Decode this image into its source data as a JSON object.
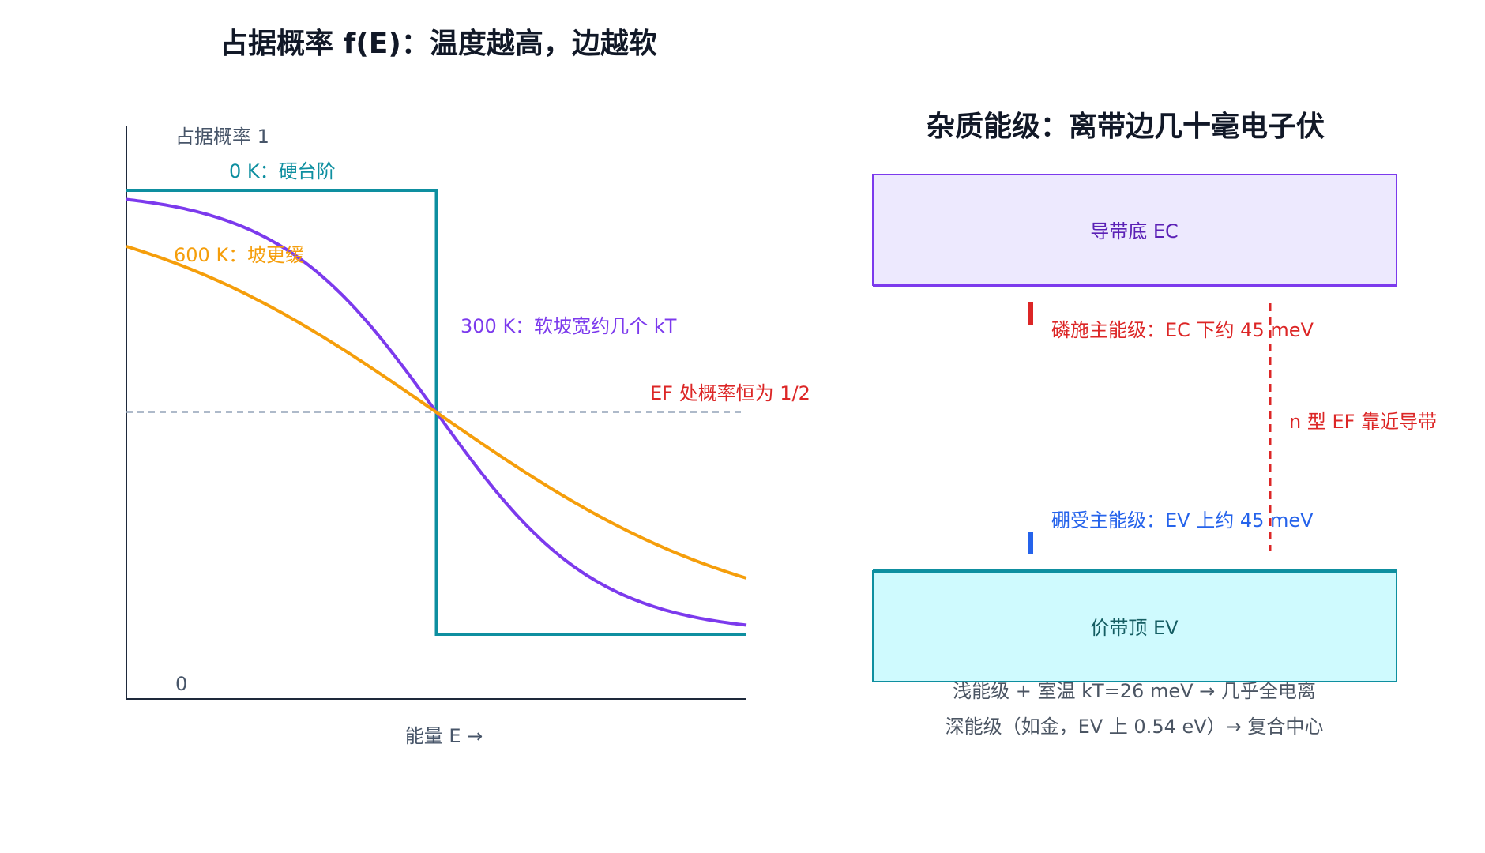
{
  "left_panel": {
    "title": "占据概率 f(E)：温度越高，边越软",
    "y_top_label": "占据概率 1",
    "y_bottom_label": "0",
    "x_label": "能量 E →",
    "fermi_label": "EF 处概率恒为 1/2",
    "colors": {
      "axis": "#1e293b",
      "fermi_line": "#94a3b8",
      "fermi_text": "#dc2626"
    }
  },
  "chart_data": {
    "type": "line",
    "x_range": [
      -0.5,
      0.5
    ],
    "ylim": [
      0,
      1
    ],
    "fermi_level": 0,
    "fermi_probability": 0.5,
    "series": [
      {
        "name": "0 K：硬台阶",
        "temperature_K": 0,
        "color": "#0e8fa0",
        "shape": "step",
        "step_at": 0
      },
      {
        "name": "300 K：软坡宽约几个 kT",
        "temperature_K": 300,
        "color": "#7c3aed",
        "shape": "fermi-dirac"
      },
      {
        "name": "600 K：坡更缓",
        "temperature_K": 600,
        "color": "#f59e0b",
        "shape": "fermi-dirac"
      }
    ]
  },
  "right_panel": {
    "title": "杂质能级：离带边几十毫电子伏",
    "conduction_band": {
      "label": "导带底 EC",
      "fill": "#ede9fe",
      "stroke": "#7c3aed",
      "text_color": "#5b21b6"
    },
    "valence_band": {
      "label": "价带顶 EV",
      "fill": "#cffafe",
      "stroke": "#0e8fa0",
      "text_color": "#155e63"
    },
    "donor": {
      "label": "磷施主能级：EC 下约 45 meV",
      "color": "#dc2626"
    },
    "acceptor": {
      "label": "硼受主能级：EV 上约 45 meV",
      "color": "#2563eb"
    },
    "fermi_n": {
      "label": "n 型 EF 靠近导带",
      "color": "#dc2626"
    },
    "notes": [
      "浅能级 + 室温 kT=26 meV → 几乎全电离",
      "深能级（如金，EV 上 0.54 eV）→ 复合中心"
    ],
    "note_color": "#4b5563"
  }
}
